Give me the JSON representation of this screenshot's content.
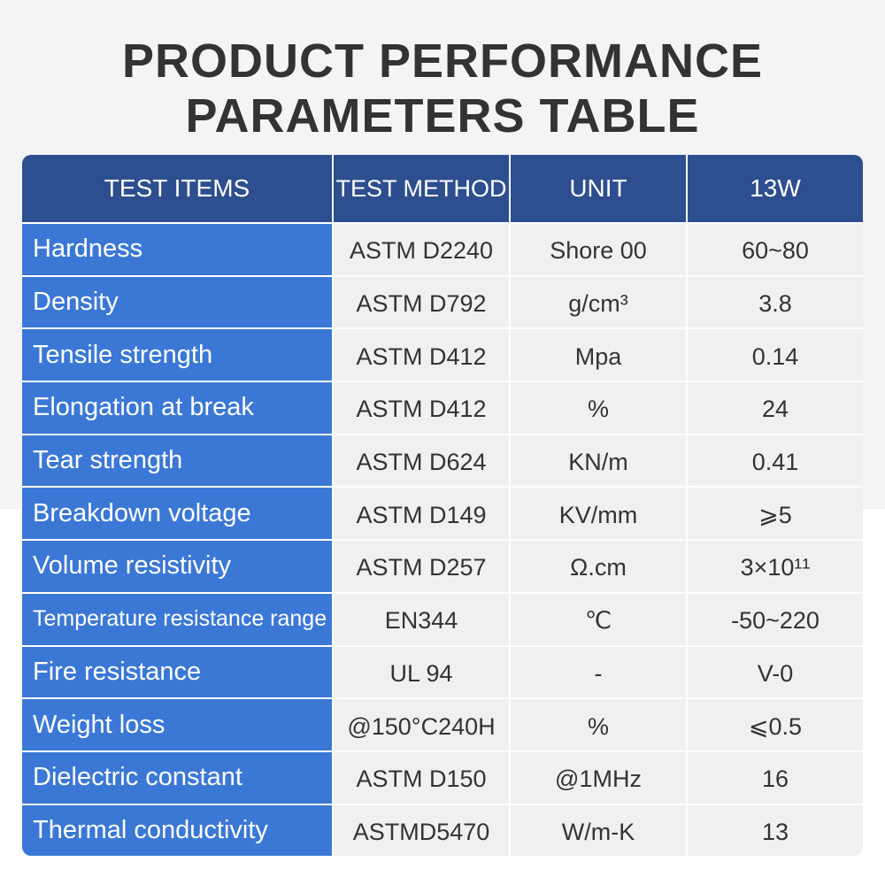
{
  "header": {
    "title": [
      "PRODUCT PERFORMANCE",
      "PARAMETERS TABLE"
    ]
  },
  "table": {
    "columns": [
      "TEST ITEMS",
      "TEST METHOD",
      "UNIT",
      "13W"
    ],
    "rows": [
      [
        "Hardness",
        "ASTM D2240",
        "Shore 00",
        "60~80"
      ],
      [
        "Density",
        "ASTM D792",
        "g/cm³",
        "3.8"
      ],
      [
        "Tensile strength",
        "ASTM D412",
        "Mpa",
        "0.14"
      ],
      [
        "Elongation at break",
        "ASTM D412",
        "%",
        "24"
      ],
      [
        "Tear strength",
        "ASTM D624",
        "KN/m",
        "0.41"
      ],
      [
        "Breakdown voltage",
        "ASTM D149",
        "KV/mm",
        "⩾5"
      ],
      [
        "Volume resistivity",
        "ASTM D257",
        "Ω.cm",
        "3×10¹¹"
      ],
      [
        "Temperature resistance range",
        "EN344",
        "℃",
        "-50~220"
      ],
      [
        "Fire resistance",
        "UL 94",
        "-",
        "V-0"
      ],
      [
        "Weight loss",
        "@150°C240H",
        "%",
        "⩽0.5"
      ],
      [
        "Dielectric constant",
        "ASTM D150",
        "@1MHz",
        "16"
      ],
      [
        "Thermal conductivity",
        "ASTMD5470",
        "W/m-K",
        "13"
      ]
    ]
  }
}
